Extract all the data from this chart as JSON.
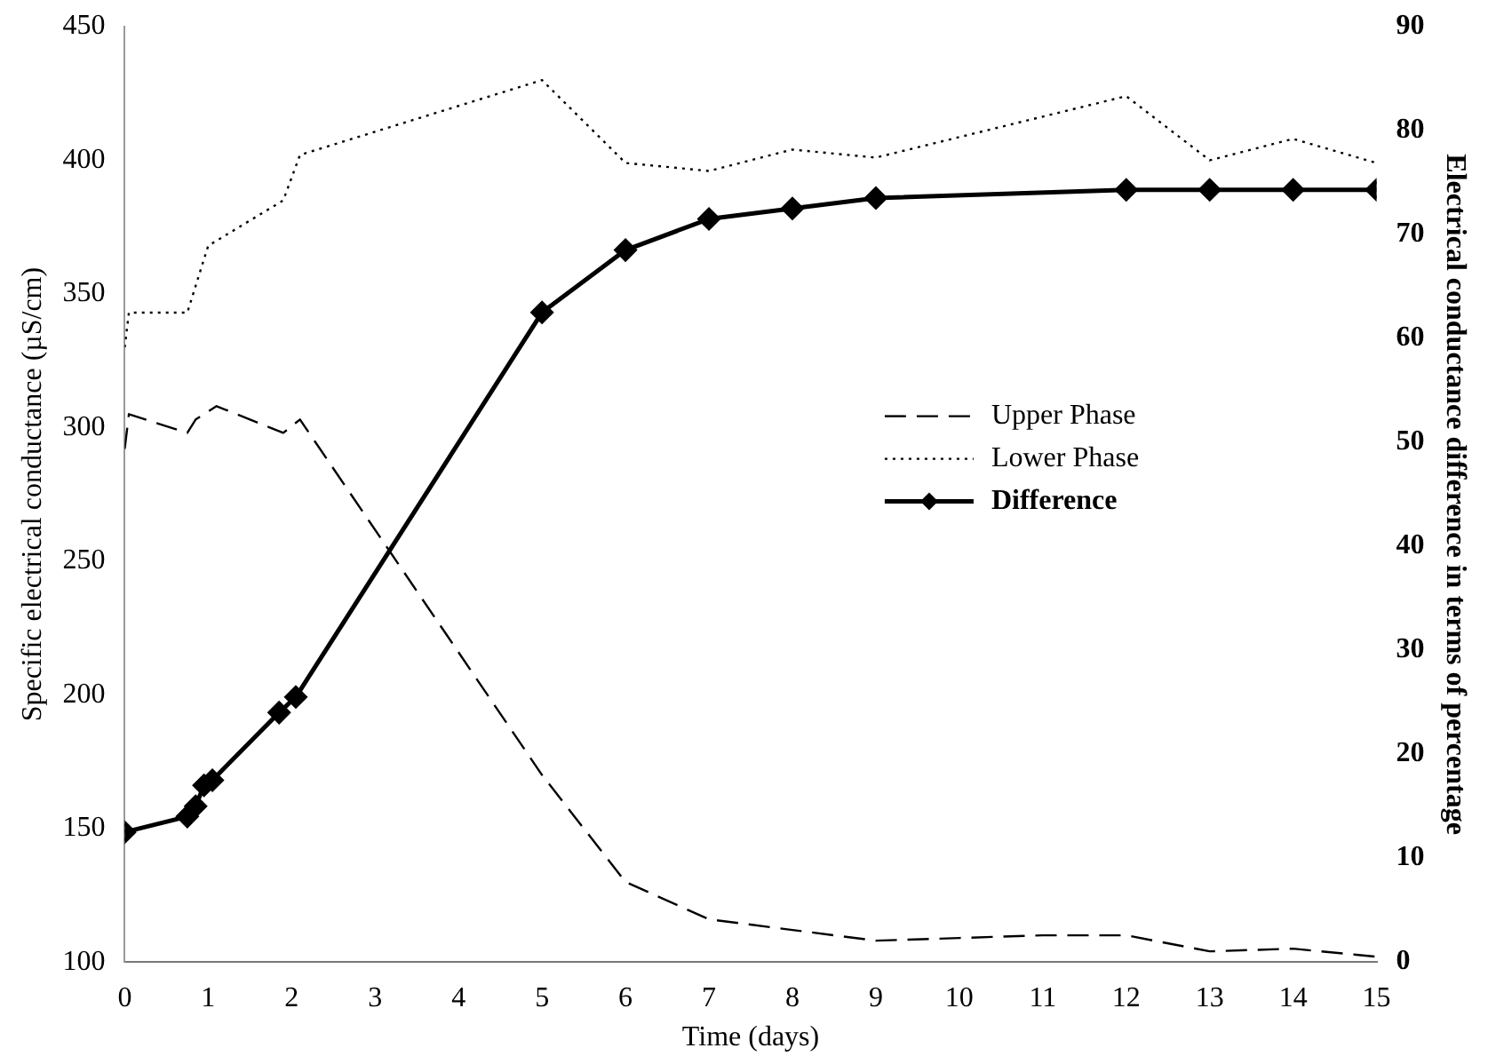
{
  "chart_data": {
    "type": "line",
    "xlabel": "Time (days)",
    "ylabel": "Specific electrical conductance (µS/cm)",
    "y2label": "Electrical conductance difference in terms of percentage",
    "xlim": [
      0,
      15
    ],
    "xticks": [
      0,
      1,
      2,
      3,
      4,
      5,
      6,
      7,
      8,
      9,
      10,
      11,
      12,
      13,
      14,
      15
    ],
    "ylim": [
      100,
      450
    ],
    "yticks": [
      100,
      150,
      200,
      250,
      300,
      350,
      400,
      450
    ],
    "y2lim": [
      0,
      90
    ],
    "y2ticks": [
      0,
      10,
      20,
      30,
      40,
      50,
      60,
      70,
      80,
      90
    ],
    "grid": false,
    "legend": "right",
    "series": [
      {
        "name": "Upper Phase",
        "color": "#000000",
        "line_style": "dashed",
        "marker": "none",
        "x": [
          0,
          0.05,
          0.75,
          0.85,
          1.1,
          1.9,
          2.1,
          5,
          6,
          7,
          8,
          9,
          10,
          11,
          12,
          13,
          14,
          15
        ],
        "values": [
          292,
          305,
          298,
          303,
          308,
          298,
          303,
          170,
          130,
          116,
          112,
          108,
          109,
          110,
          110,
          104,
          105,
          102
        ]
      },
      {
        "name": "Lower Phase",
        "color": "#000000",
        "line_style": "dotted",
        "marker": "none",
        "x": [
          0,
          0.05,
          0.75,
          1,
          1.9,
          2.1,
          5,
          6,
          7,
          8,
          9,
          12,
          13,
          14,
          15
        ],
        "values": [
          330,
          343,
          343,
          368,
          385,
          402,
          430,
          399,
          396,
          404,
          401,
          424,
          400,
          408,
          399
        ]
      },
      {
        "name": "Difference",
        "color": "#000000",
        "line_style": "solid",
        "marker": "diamond",
        "axis": "y2",
        "x": [
          0,
          0.75,
          0.85,
          0.95,
          1.05,
          1.85,
          2.05,
          5,
          6,
          7,
          8,
          9,
          12,
          13,
          14,
          15
        ],
        "values": [
          12.5,
          14,
          15,
          17,
          17.5,
          24,
          25.5,
          62.5,
          68.5,
          71.5,
          72.5,
          73.5,
          74.3,
          74.3,
          74.3,
          74.3
        ]
      }
    ]
  }
}
